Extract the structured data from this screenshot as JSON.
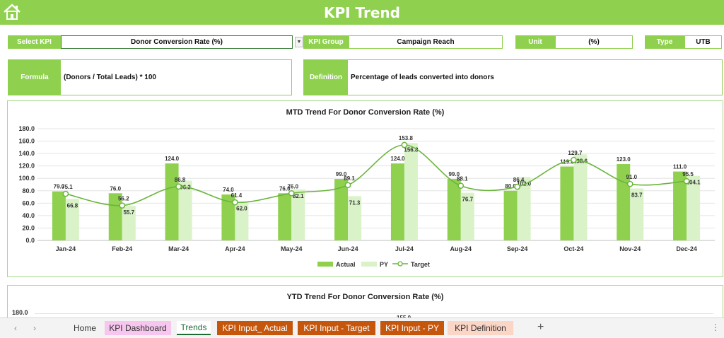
{
  "header": {
    "title": "KPI Trend",
    "home_icon": "home-icon"
  },
  "selectors": {
    "select_kpi_label": "Select KPI",
    "select_kpi_value": "Donor Conversion Rate (%)",
    "kpi_group_label": "KPI Group",
    "kpi_group_value": "Campaign Reach",
    "unit_label": "Unit",
    "unit_value": "(%)",
    "type_label": "Type",
    "type_value": "UTB"
  },
  "info": {
    "formula_label": "Formula",
    "formula_value": "(Donors / Total Leads) * 100",
    "definition_label": "Definition",
    "definition_value": "Percentage of leads converted into donors"
  },
  "colors": {
    "actual": "#8fd14f",
    "py": "#d9f2c7",
    "target": "#6ab53b",
    "header": "#8fd14f"
  },
  "chart_data": [
    {
      "type": "bar",
      "title": "MTD Trend For Donor Conversion Rate (%)",
      "categories": [
        "Jan-24",
        "Feb-24",
        "Mar-24",
        "Apr-24",
        "May-24",
        "Jun-24",
        "Jul-24",
        "Aug-24",
        "Sep-24",
        "Oct-24",
        "Nov-24",
        "Dec-24"
      ],
      "series": [
        {
          "name": "Actual",
          "kind": "bar",
          "values": [
            79.0,
            76.0,
            124.0,
            74.0,
            76.0,
            99.0,
            124.0,
            99.0,
            80.0,
            119.0,
            123.0,
            111.0
          ]
        },
        {
          "name": "PY",
          "kind": "bar",
          "values": [
            66.8,
            55.7,
            96.3,
            62.0,
            82.1,
            71.3,
            156.8,
            76.7,
            102.0,
            138.6,
            83.7,
            104.1
          ]
        },
        {
          "name": "Target",
          "kind": "line",
          "values": [
            75.1,
            56.2,
            86.8,
            61.4,
            76.0,
            89.1,
            153.8,
            88.1,
            86.4,
            129.7,
            91.0,
            95.5
          ]
        }
      ],
      "yticks": [
        "0.0",
        "20.0",
        "40.0",
        "60.0",
        "80.0",
        "100.0",
        "120.0",
        "140.0",
        "160.0",
        "180.0"
      ],
      "ylim": [
        0,
        180
      ],
      "legend": [
        "Actual",
        "PY",
        "Target"
      ],
      "legend_position": "bottom"
    },
    {
      "type": "bar",
      "title": "YTD Trend For Donor Conversion Rate (%)",
      "yticks": [
        "180.0"
      ],
      "partial_label": "155.0"
    }
  ],
  "sheet_tabs": {
    "tabs": [
      {
        "label": "Home",
        "bg": "transparent",
        "color": "#333333"
      },
      {
        "label": "KPI Dashboard",
        "bg": "#f6c6ee",
        "color": "#333333"
      },
      {
        "label": "Trends",
        "bg": "#ffffff",
        "color": "#1d6b32",
        "active": true
      },
      {
        "label": "KPI Input_ Actual",
        "bg": "#c5560c",
        "color": "#ffffff"
      },
      {
        "label": "KPI Input - Target",
        "bg": "#c5560c",
        "color": "#ffffff"
      },
      {
        "label": "KPI Input - PY",
        "bg": "#c5560c",
        "color": "#ffffff"
      },
      {
        "label": "KPI Definition",
        "bg": "#fbd5c5",
        "color": "#333333"
      }
    ],
    "add_label": "+",
    "prev_icon": "chevron-left-icon",
    "next_icon": "chevron-right-icon",
    "more_icon": "more-vertical-icon"
  }
}
